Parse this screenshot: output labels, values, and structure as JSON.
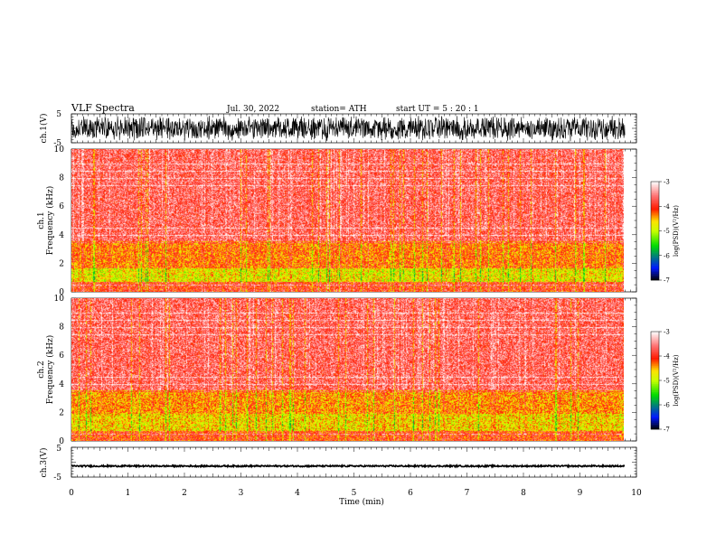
{
  "header": {
    "title": "VLF  Spectra",
    "date": "Jul.  30,  2022",
    "station": "station= ATH",
    "start_ut": "start  UT  =    5  : 20 : 1"
  },
  "chart_data": [
    {
      "type": "line",
      "panel": "ch1-waveform",
      "ylabel": "ch.1(V)",
      "ylim": [
        -5,
        5
      ],
      "yticks": [
        "5",
        "-5"
      ],
      "xlim": [
        0,
        10
      ],
      "x_end": 9.8,
      "envelope_approx_V": [
        -4.5,
        4.5
      ]
    },
    {
      "type": "heatmap",
      "panel": "ch1-spectrogram",
      "ylabel": "ch.1\nFrequency  (kHz)",
      "ylabel_lines": [
        "ch.1",
        "Frequency  (kHz)"
      ],
      "ylim": [
        0,
        10
      ],
      "yticks": [
        "0",
        "2",
        "4",
        "6",
        "8",
        "10"
      ],
      "xlim": [
        0,
        10
      ],
      "x_end": 9.8,
      "colorbar": {
        "label": "log(PSD)(V²/Hz)",
        "range": [
          -7,
          -3
        ],
        "ticks": [
          "-3",
          "-4",
          "-5",
          "-6",
          "-7"
        ]
      },
      "bands_approx": [
        {
          "freq_khz": [
            0,
            0.7
          ],
          "log_psd": -4.0
        },
        {
          "freq_khz": [
            0.7,
            1.7
          ],
          "log_psd": -4.8
        },
        {
          "freq_khz": [
            1.7,
            3.6
          ],
          "log_psd": -4.3
        },
        {
          "freq_khz": [
            3.6,
            10
          ],
          "log_psd": -3.7
        }
      ],
      "colors": {
        "low": "#000000",
        "blue": "#0018ff",
        "green": "#00dd00",
        "yellow": "#ffe000",
        "red": "#ff1a00",
        "high": "#ffffff"
      }
    },
    {
      "type": "heatmap",
      "panel": "ch2-spectrogram",
      "ylabel": "ch.2\nFrequency  (kHz)",
      "ylabel_lines": [
        "ch.2",
        "Frequency  (kHz)"
      ],
      "ylim": [
        0,
        10
      ],
      "yticks": [
        "0",
        "2",
        "4",
        "6",
        "8",
        "10"
      ],
      "xlim": [
        0,
        10
      ],
      "x_end": 9.8,
      "colorbar": {
        "label": "log(PSD)(V²/Hz)",
        "range": [
          -7,
          -3
        ],
        "ticks": [
          "-3",
          "-4",
          "-5",
          "-6",
          "-7"
        ]
      },
      "bands_approx": [
        {
          "freq_khz": [
            0,
            0.7
          ],
          "log_psd": -4.1
        },
        {
          "freq_khz": [
            0.7,
            1.9
          ],
          "log_psd": -4.7
        },
        {
          "freq_khz": [
            1.9,
            3.6
          ],
          "log_psd": -4.4
        },
        {
          "freq_khz": [
            3.6,
            10
          ],
          "log_psd": -3.7
        }
      ]
    },
    {
      "type": "line",
      "panel": "ch3-waveform",
      "ylabel": "ch.3(V)",
      "ylim": [
        -5,
        5
      ],
      "yticks": [
        "5",
        "-5"
      ],
      "xlim": [
        0,
        10
      ],
      "x_end": 9.8,
      "mean_V": -1.3,
      "xlabel": "Time  (min)",
      "xticks": [
        "0",
        "1",
        "2",
        "3",
        "4",
        "5",
        "6",
        "7",
        "8",
        "9",
        "10"
      ]
    }
  ]
}
